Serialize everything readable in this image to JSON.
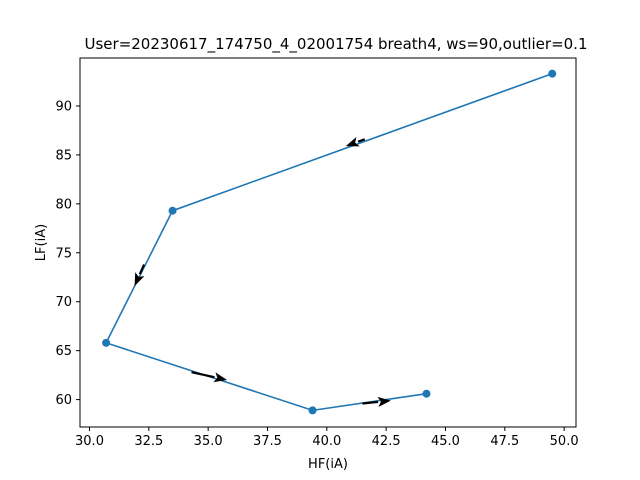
{
  "chart_data": {
    "type": "line",
    "title": "User=20230617_174750_4_02001754 breath4, ws=90,outlier=0.1",
    "xlabel": "HF(iA)",
    "ylabel": "LF(iA)",
    "xlim": [
      29.6,
      50.5
    ],
    "ylim": [
      57.2,
      94.9
    ],
    "xticks": [
      30.0,
      32.5,
      35.0,
      37.5,
      40.0,
      42.5,
      45.0,
      47.5,
      50.0
    ],
    "xtick_labels": [
      "30.0",
      "32.5",
      "35.0",
      "37.5",
      "40.0",
      "42.5",
      "45.0",
      "47.5",
      "50.0"
    ],
    "yticks": [
      60,
      65,
      70,
      75,
      80,
      85,
      90
    ],
    "ytick_labels": [
      "60",
      "65",
      "70",
      "75",
      "80",
      "85",
      "90"
    ],
    "grid": false,
    "series": [
      {
        "color": "#1f77b4",
        "marker": "circle",
        "x": [
          49.5,
          33.5,
          30.7,
          39.4,
          44.2
        ],
        "y": [
          93.3,
          79.3,
          65.8,
          58.9,
          60.6
        ]
      }
    ],
    "arrows": [
      {
        "from": [
          41.6,
          86.6
        ],
        "to": [
          40.8,
          85.9
        ],
        "color": "#000000"
      },
      {
        "from": [
          32.3,
          73.8
        ],
        "to": [
          31.9,
          71.6
        ],
        "color": "#000000"
      },
      {
        "from": [
          34.3,
          62.8
        ],
        "to": [
          35.8,
          62.0
        ],
        "color": "#000000"
      },
      {
        "from": [
          41.5,
          59.6
        ],
        "to": [
          42.7,
          59.9
        ],
        "color": "#000000"
      }
    ]
  }
}
